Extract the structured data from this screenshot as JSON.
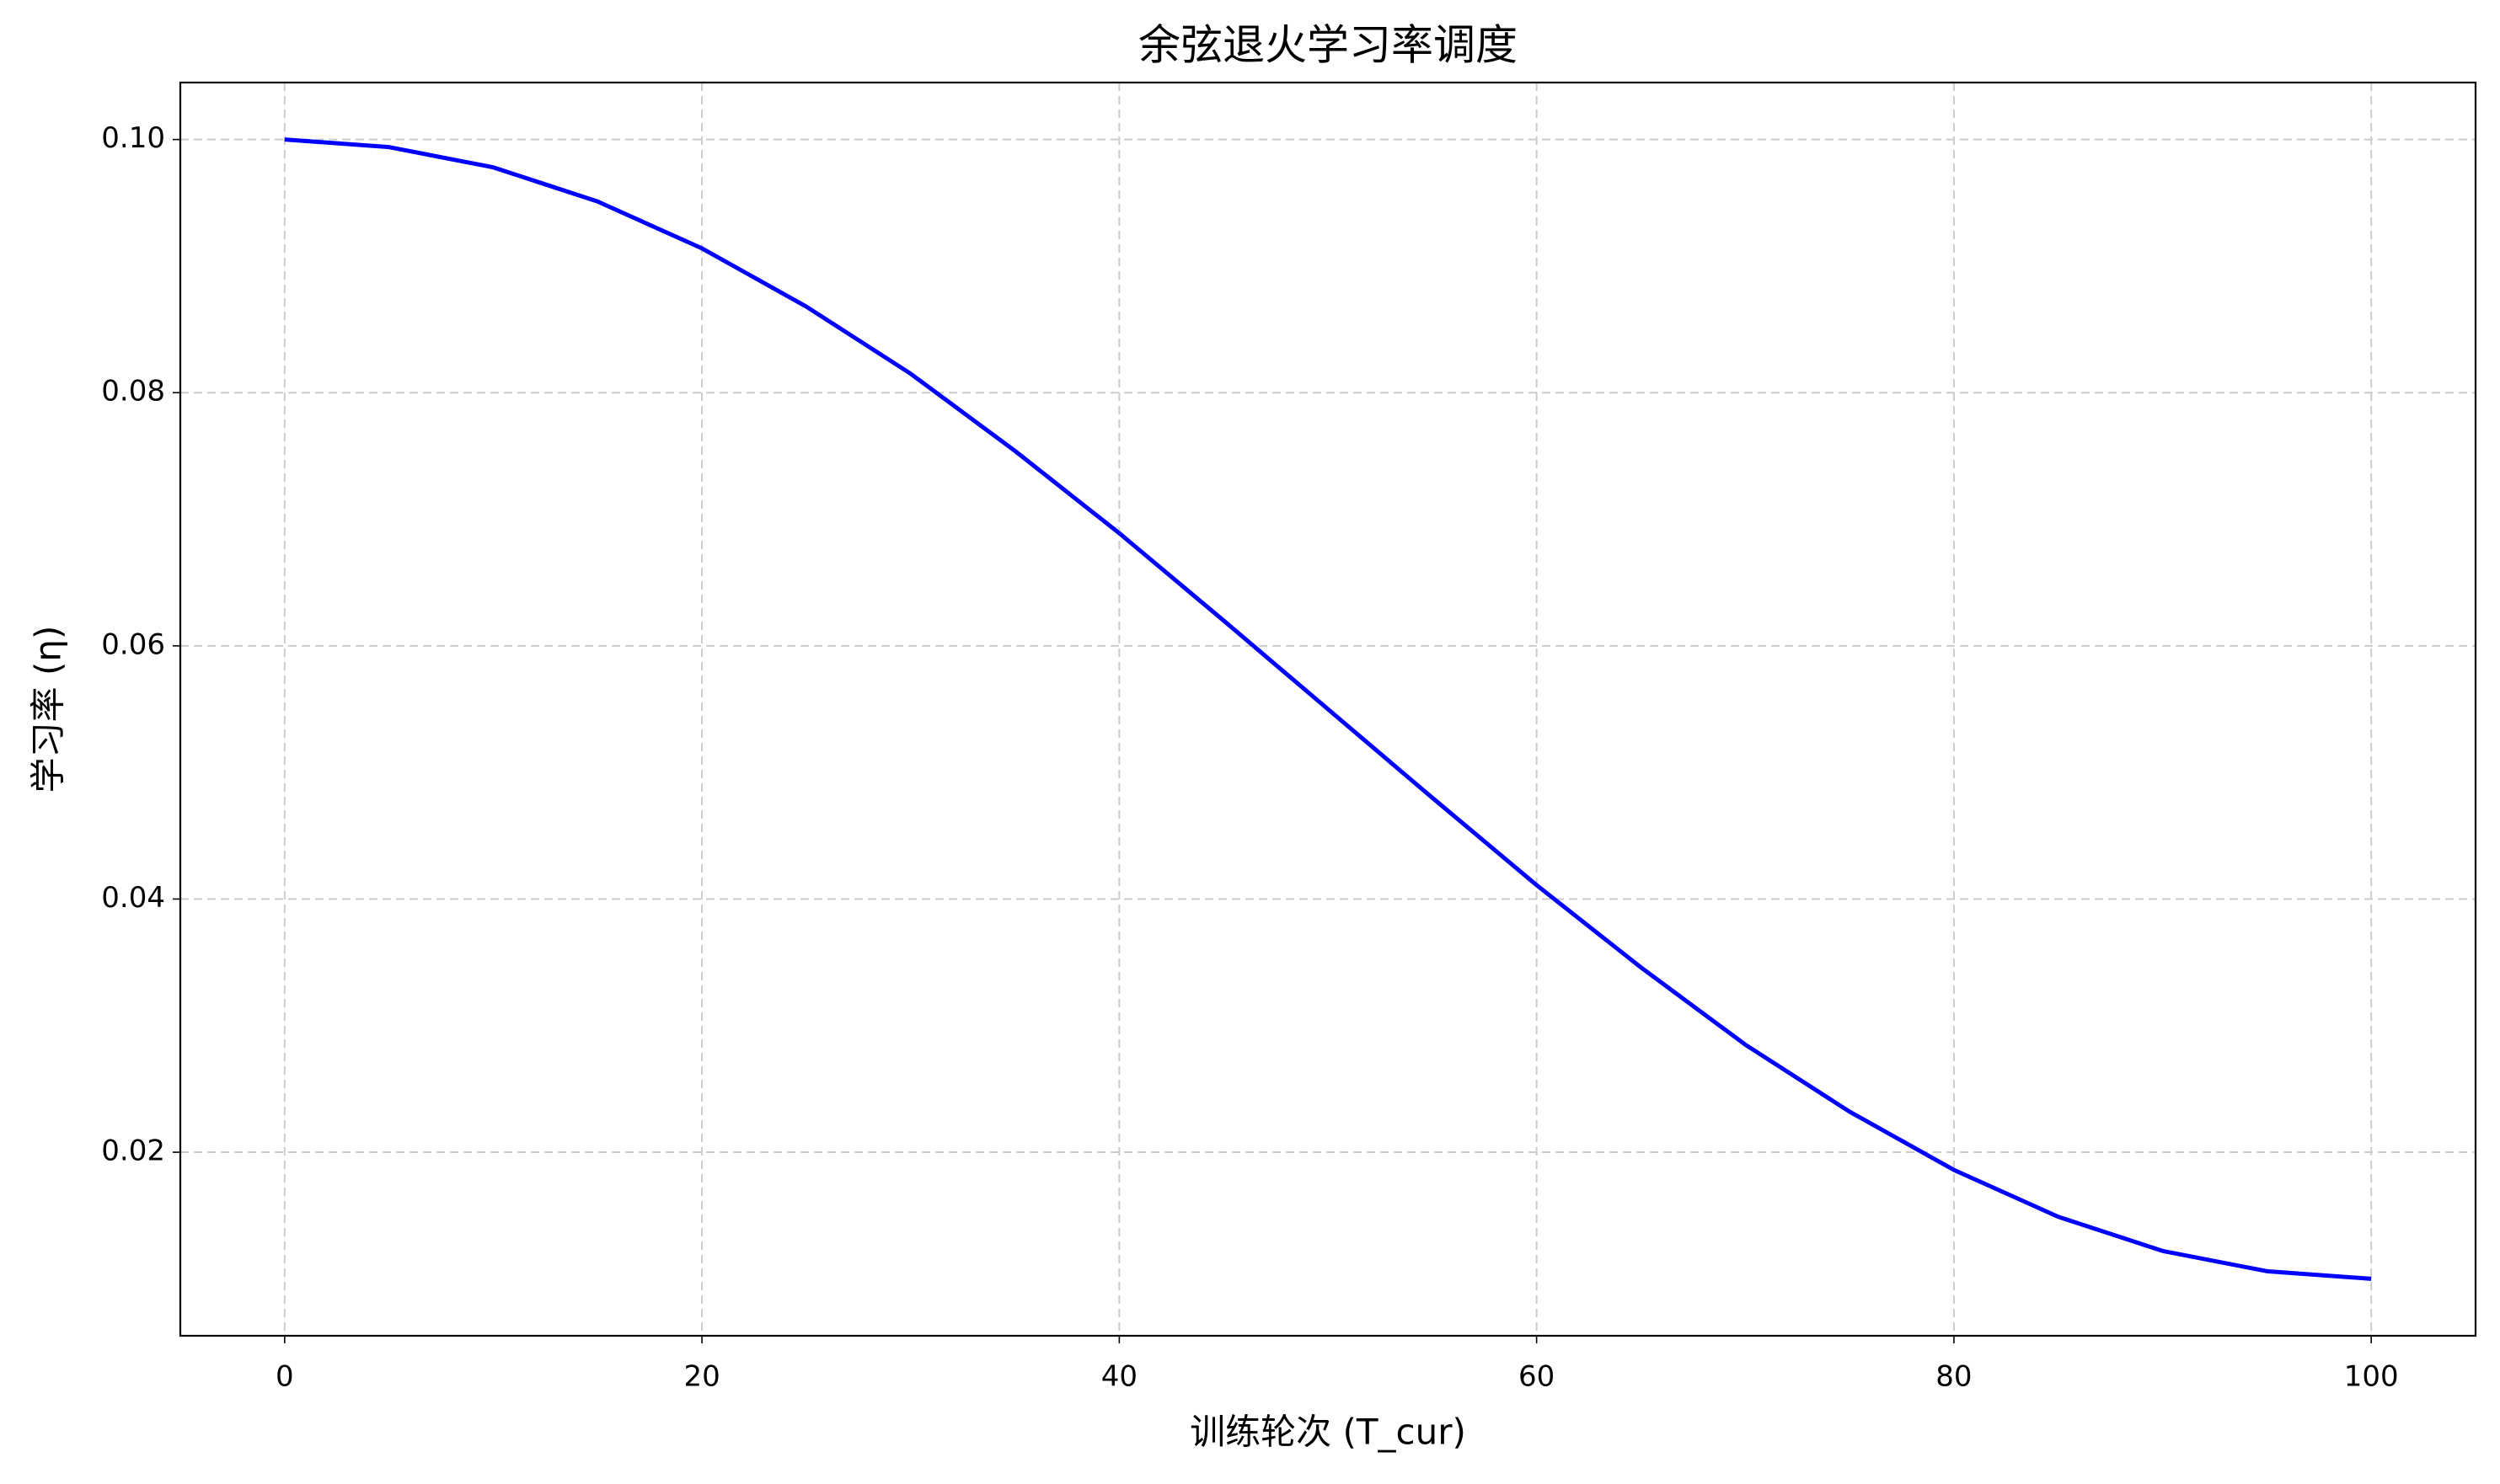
{
  "chart_data": {
    "type": "line",
    "title": "余弦退火学习率调度",
    "x_label": "训练轮次 (T_cur)",
    "y_label": "学习率 (η)",
    "x": [
      0,
      5,
      10,
      15,
      20,
      25,
      30,
      35,
      40,
      45,
      50,
      55,
      60,
      65,
      70,
      75,
      80,
      85,
      90,
      95,
      100
    ],
    "series": [
      {
        "name": "学习率",
        "color": "#0000ff",
        "values": [
          0.1,
          0.0994,
          0.0978,
          0.0951,
          0.0914,
          0.0868,
          0.0815,
          0.0754,
          0.0689,
          0.062,
          0.055,
          0.048,
          0.0411,
          0.0346,
          0.0285,
          0.0232,
          0.0186,
          0.0149,
          0.0122,
          0.0106,
          0.01
        ]
      }
    ],
    "xlim": [
      -5,
      105
    ],
    "ylim": [
      0.0055,
      0.1045
    ],
    "xticks": [
      0,
      20,
      40,
      60,
      80,
      100
    ],
    "yticks": [
      0.02,
      0.04,
      0.06,
      0.08,
      {
        "value": 0.1,
        "label": "0.10"
      }
    ],
    "grid": true
  }
}
